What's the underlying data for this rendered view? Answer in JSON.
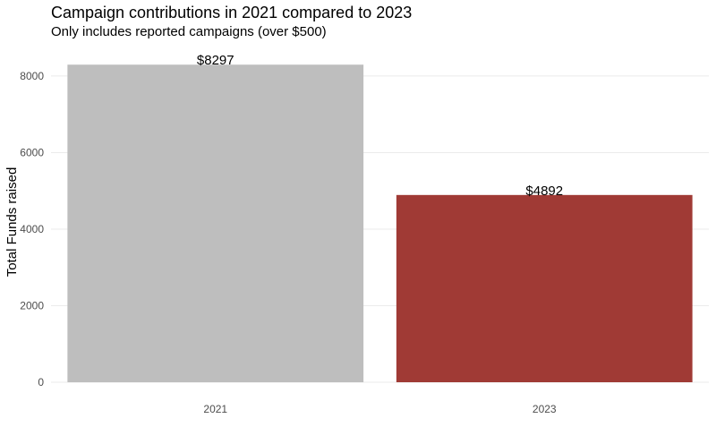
{
  "chart_data": {
    "type": "bar",
    "title": "Campaign contributions in 2021 compared to 2023",
    "subtitle": "Only includes reported campaigns (over $500)",
    "xlabel": "",
    "ylabel": "Total Funds raised",
    "categories": [
      "2021",
      "2023"
    ],
    "values": [
      8297,
      4892
    ],
    "data_labels": [
      "$8297",
      "$4892"
    ],
    "bar_colors": [
      "#bebebe",
      "#a03a35"
    ],
    "ylim": [
      0,
      8700
    ],
    "yticks": [
      0,
      2000,
      4000,
      6000,
      8000
    ],
    "ytick_labels": [
      "0",
      "2000",
      "4000",
      "6000",
      "8000"
    ],
    "grid": true,
    "legend": "none"
  }
}
